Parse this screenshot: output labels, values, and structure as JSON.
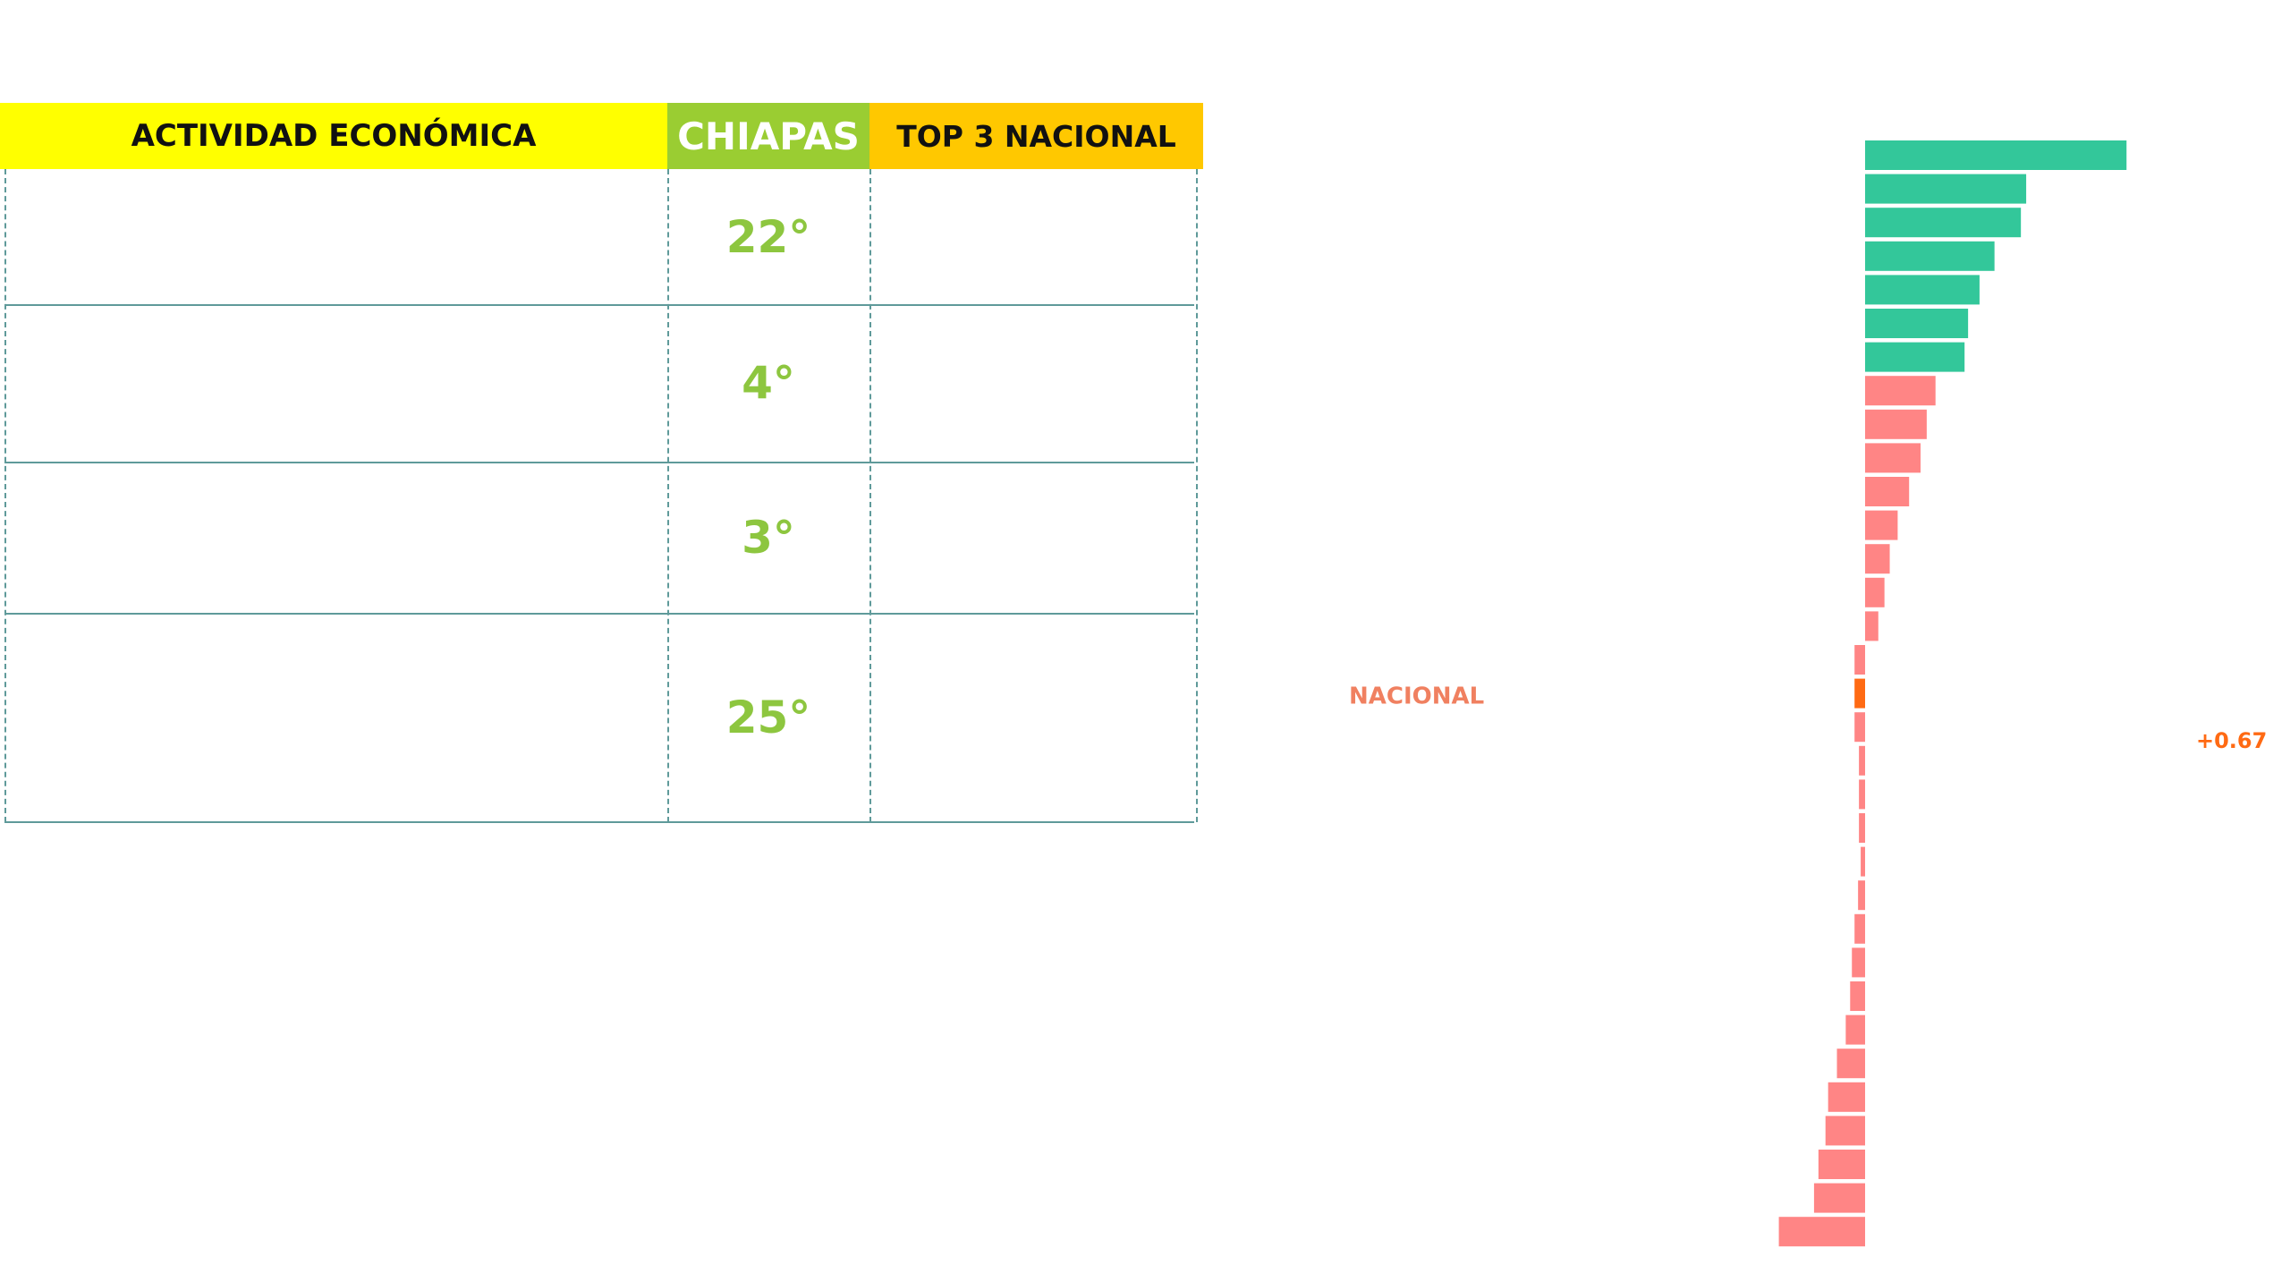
{
  "table": {
    "header": [
      "ACTIVIDAD ECONÓMICA",
      "CHIAPAS",
      "TOP 3 NACIONAL"
    ],
    "rows": [
      "22°",
      "4°",
      "3°",
      "25°"
    ]
  },
  "chart_data": {
    "type": "hbar",
    "categories": [
      null,
      null,
      null,
      null,
      null,
      null,
      null,
      null,
      null,
      null,
      null,
      null,
      null,
      null,
      null,
      null,
      "NACIONAL",
      null,
      null,
      null,
      null,
      null,
      null,
      null,
      null,
      null,
      null,
      null,
      null,
      null,
      null,
      null,
      null
    ],
    "values": [
      2.97,
      1.83,
      1.77,
      1.47,
      1.3,
      1.17,
      1.13,
      0.8,
      0.7,
      0.63,
      0.5,
      0.37,
      0.28,
      0.22,
      0.15,
      -0.12,
      -0.12,
      -0.12,
      -0.07,
      -0.07,
      -0.07,
      -0.05,
      -0.08,
      -0.12,
      -0.15,
      -0.17,
      -0.22,
      -0.32,
      -0.42,
      -0.45,
      -0.53,
      -0.58,
      -0.98
    ],
    "colors": [
      "#33c79a",
      "#33c79a",
      "#33c79a",
      "#33c79a",
      "#33c79a",
      "#33c79a",
      "#33c79a",
      "#ff8585",
      "#ff8585",
      "#ff8585",
      "#ff8585",
      "#ff8585",
      "#ff8585",
      "#ff8585",
      "#ff8585",
      "#ff8585",
      "#ff6a13",
      "#ff8585",
      "#ff8585",
      "#ff8585",
      "#ff8585",
      "#ff8585",
      "#ff8585",
      "#ff8585",
      "#ff8585",
      "#ff8585",
      "#ff8585",
      "#ff8585",
      "#ff8585",
      "#ff8585",
      "#ff8585",
      "#ff8585",
      "#ff8585"
    ],
    "annotations": [
      "+0.67"
    ]
  }
}
